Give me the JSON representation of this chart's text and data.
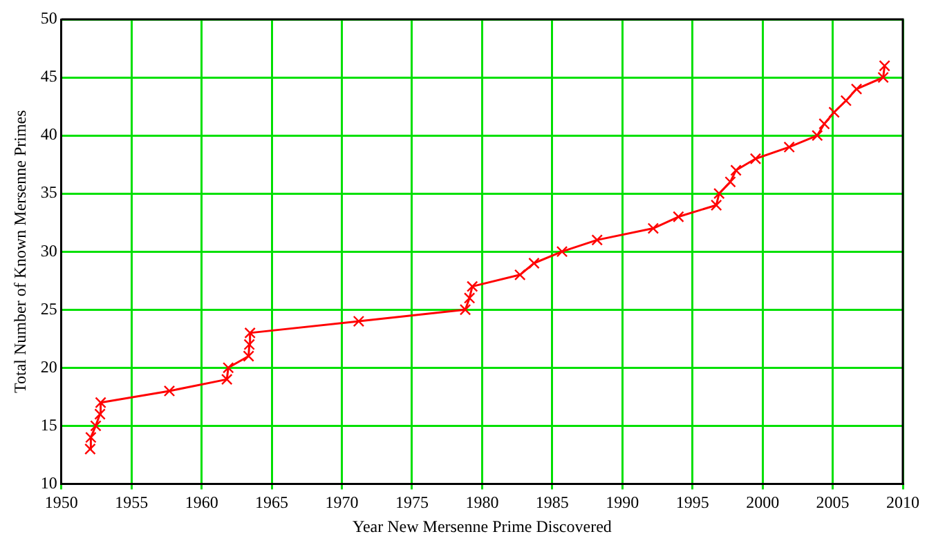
{
  "chart_data": {
    "type": "line",
    "xlabel": "Year New Mersenne Prime Discovered",
    "ylabel": "Total Number of Known Mersenne Primes",
    "x": [
      1952.05,
      1952.1,
      1952.45,
      1952.75,
      1952.8,
      1957.7,
      1961.8,
      1961.9,
      1963.35,
      1963.4,
      1963.45,
      1971.2,
      1978.8,
      1979.1,
      1979.3,
      1982.7,
      1983.7,
      1985.7,
      1988.2,
      1992.2,
      1994.0,
      1996.7,
      1996.9,
      1997.7,
      1998.1,
      1999.5,
      2001.9,
      2003.9,
      2004.4,
      2005.1,
      2005.95,
      2006.7,
      2008.6,
      2008.7
    ],
    "series": [
      {
        "color": "#ff0000",
        "values": [
          13,
          14,
          15,
          16,
          17,
          18,
          19,
          20,
          21,
          22,
          23,
          24,
          25,
          26,
          27,
          28,
          29,
          30,
          31,
          32,
          33,
          34,
          35,
          36,
          37,
          38,
          39,
          40,
          41,
          42,
          43,
          44,
          45,
          46
        ]
      }
    ],
    "xlim": [
      1950,
      2010
    ],
    "xticks": [
      1950,
      1955,
      1960,
      1965,
      1970,
      1975,
      1980,
      1985,
      1990,
      1995,
      2000,
      2005,
      2010
    ],
    "ylim": [
      10,
      50
    ],
    "yticks": [
      10,
      15,
      20,
      25,
      30,
      35,
      40,
      45,
      50
    ],
    "grid": true,
    "legend": false,
    "marker": "cross",
    "line_style": "solid"
  }
}
